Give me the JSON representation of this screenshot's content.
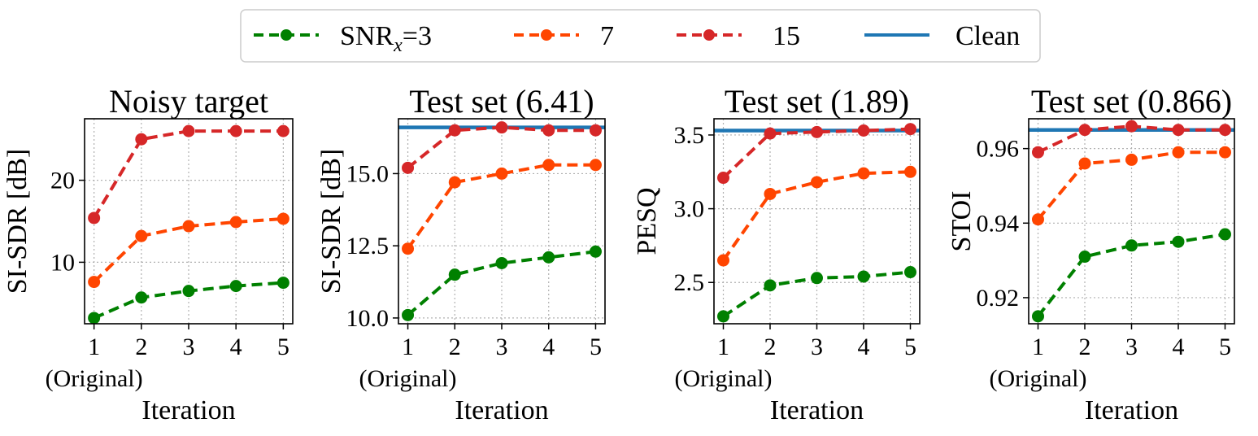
{
  "legend": {
    "entries": [
      {
        "label_main": "SNR",
        "label_sub": "x",
        "label_rest": "=3",
        "color": "#008000",
        "style": "dashed-marker"
      },
      {
        "label": "7",
        "color": "#ff4500",
        "style": "dashed-marker"
      },
      {
        "label": "15",
        "color": "#d62728",
        "style": "dashed-marker"
      },
      {
        "label": "Clean",
        "color": "#1f77b4",
        "style": "solid"
      }
    ]
  },
  "chart_data": [
    {
      "type": "line",
      "title": "Noisy target",
      "xlabel": "Iteration",
      "ylabel": "SI-SDR [dB]",
      "x": [
        1,
        2,
        3,
        4,
        5
      ],
      "xtick_labels": [
        "1",
        "2",
        "3",
        "4",
        "5"
      ],
      "first_tick_note": "(Original)",
      "ylim": [
        2.5,
        27.5
      ],
      "yticks": [
        10,
        20
      ],
      "ytick_labels": [
        "10",
        "20"
      ],
      "grid": true,
      "series": [
        {
          "name": "SNRx=3",
          "color": "#008000",
          "values": [
            3.2,
            5.7,
            6.5,
            7.1,
            7.5
          ]
        },
        {
          "name": "7",
          "color": "#ff4500",
          "values": [
            7.6,
            13.2,
            14.4,
            14.9,
            15.3
          ]
        },
        {
          "name": "15",
          "color": "#d62728",
          "values": [
            15.4,
            25.0,
            26.0,
            26.0,
            26.0
          ]
        }
      ],
      "clean": null
    },
    {
      "type": "line",
      "title": "Test set (6.41)",
      "xlabel": "Iteration",
      "ylabel": "SI-SDR [dB]",
      "x": [
        1,
        2,
        3,
        4,
        5
      ],
      "xtick_labels": [
        "1",
        "2",
        "3",
        "4",
        "5"
      ],
      "first_tick_note": "(Original)",
      "ylim": [
        9.8,
        16.9
      ],
      "yticks": [
        10.0,
        12.5,
        15.0
      ],
      "ytick_labels": [
        "10.0",
        "12.5",
        "15.0"
      ],
      "grid": true,
      "series": [
        {
          "name": "SNRx=3",
          "color": "#008000",
          "values": [
            10.1,
            11.5,
            11.9,
            12.1,
            12.3
          ]
        },
        {
          "name": "7",
          "color": "#ff4500",
          "values": [
            12.4,
            14.7,
            15.0,
            15.3,
            15.3
          ]
        },
        {
          "name": "15",
          "color": "#d62728",
          "values": [
            15.2,
            16.5,
            16.6,
            16.5,
            16.5
          ]
        }
      ],
      "clean": 16.6
    },
    {
      "type": "line",
      "title": "Test set (1.89)",
      "xlabel": "Iteration",
      "ylabel": "PESQ",
      "x": [
        1,
        2,
        3,
        4,
        5
      ],
      "xtick_labels": [
        "1",
        "2",
        "3",
        "4",
        "5"
      ],
      "first_tick_note": "(Original)",
      "ylim": [
        2.22,
        3.61
      ],
      "yticks": [
        2.5,
        3.0,
        3.5
      ],
      "ytick_labels": [
        "2.5",
        "3.0",
        "3.5"
      ],
      "grid": true,
      "series": [
        {
          "name": "SNRx=3",
          "color": "#008000",
          "values": [
            2.27,
            2.48,
            2.53,
            2.54,
            2.57
          ]
        },
        {
          "name": "7",
          "color": "#ff4500",
          "values": [
            2.65,
            3.1,
            3.18,
            3.24,
            3.25
          ]
        },
        {
          "name": "15",
          "color": "#d62728",
          "values": [
            3.21,
            3.51,
            3.52,
            3.53,
            3.54
          ]
        }
      ],
      "clean": 3.53
    },
    {
      "type": "line",
      "title": "Test set (0.866)",
      "xlabel": "Iteration",
      "ylabel": "STOI",
      "x": [
        1,
        2,
        3,
        4,
        5
      ],
      "xtick_labels": [
        "1",
        "2",
        "3",
        "4",
        "5"
      ],
      "first_tick_note": "(Original)",
      "ylim": [
        0.913,
        0.968
      ],
      "yticks": [
        0.92,
        0.94,
        0.96
      ],
      "ytick_labels": [
        "0.92",
        "0.94",
        "0.96"
      ],
      "grid": true,
      "series": [
        {
          "name": "SNRx=3",
          "color": "#008000",
          "values": [
            0.915,
            0.931,
            0.934,
            0.935,
            0.937
          ]
        },
        {
          "name": "7",
          "color": "#ff4500",
          "values": [
            0.941,
            0.956,
            0.957,
            0.959,
            0.959
          ]
        },
        {
          "name": "15",
          "color": "#d62728",
          "values": [
            0.959,
            0.965,
            0.966,
            0.965,
            0.965
          ]
        }
      ],
      "clean": 0.965
    }
  ]
}
